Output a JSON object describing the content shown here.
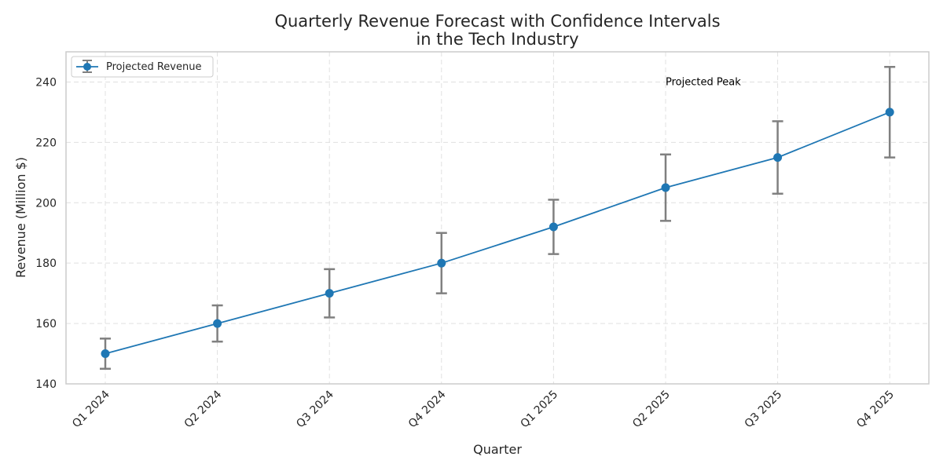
{
  "chart_data": {
    "type": "line",
    "title_lines": [
      "Quarterly Revenue Forecast with Confidence Intervals",
      "in the Tech Industry"
    ],
    "xlabel": "Quarter",
    "ylabel": "Revenue (Million $)",
    "categories": [
      "Q1 2024",
      "Q2 2024",
      "Q3 2024",
      "Q4 2024",
      "Q1 2025",
      "Q2 2025",
      "Q3 2025",
      "Q4 2025"
    ],
    "series": [
      {
        "name": "Projected Revenue",
        "values": [
          150,
          160,
          170,
          180,
          192,
          205,
          215,
          230
        ],
        "lower": [
          145,
          154,
          162,
          170,
          183,
          194,
          203,
          215
        ],
        "upper": [
          155,
          166,
          178,
          190,
          201,
          216,
          227,
          245
        ],
        "color": "#1f77b4",
        "errorbar_color": "#808080"
      }
    ],
    "ylim": [
      140,
      250
    ],
    "yticks": [
      140,
      160,
      180,
      200,
      220,
      240
    ],
    "grid": true,
    "legend_position": "top-left",
    "annotations": [
      {
        "text": "Projected Peak",
        "x": "Q2 2025",
        "y": 240
      }
    ]
  }
}
